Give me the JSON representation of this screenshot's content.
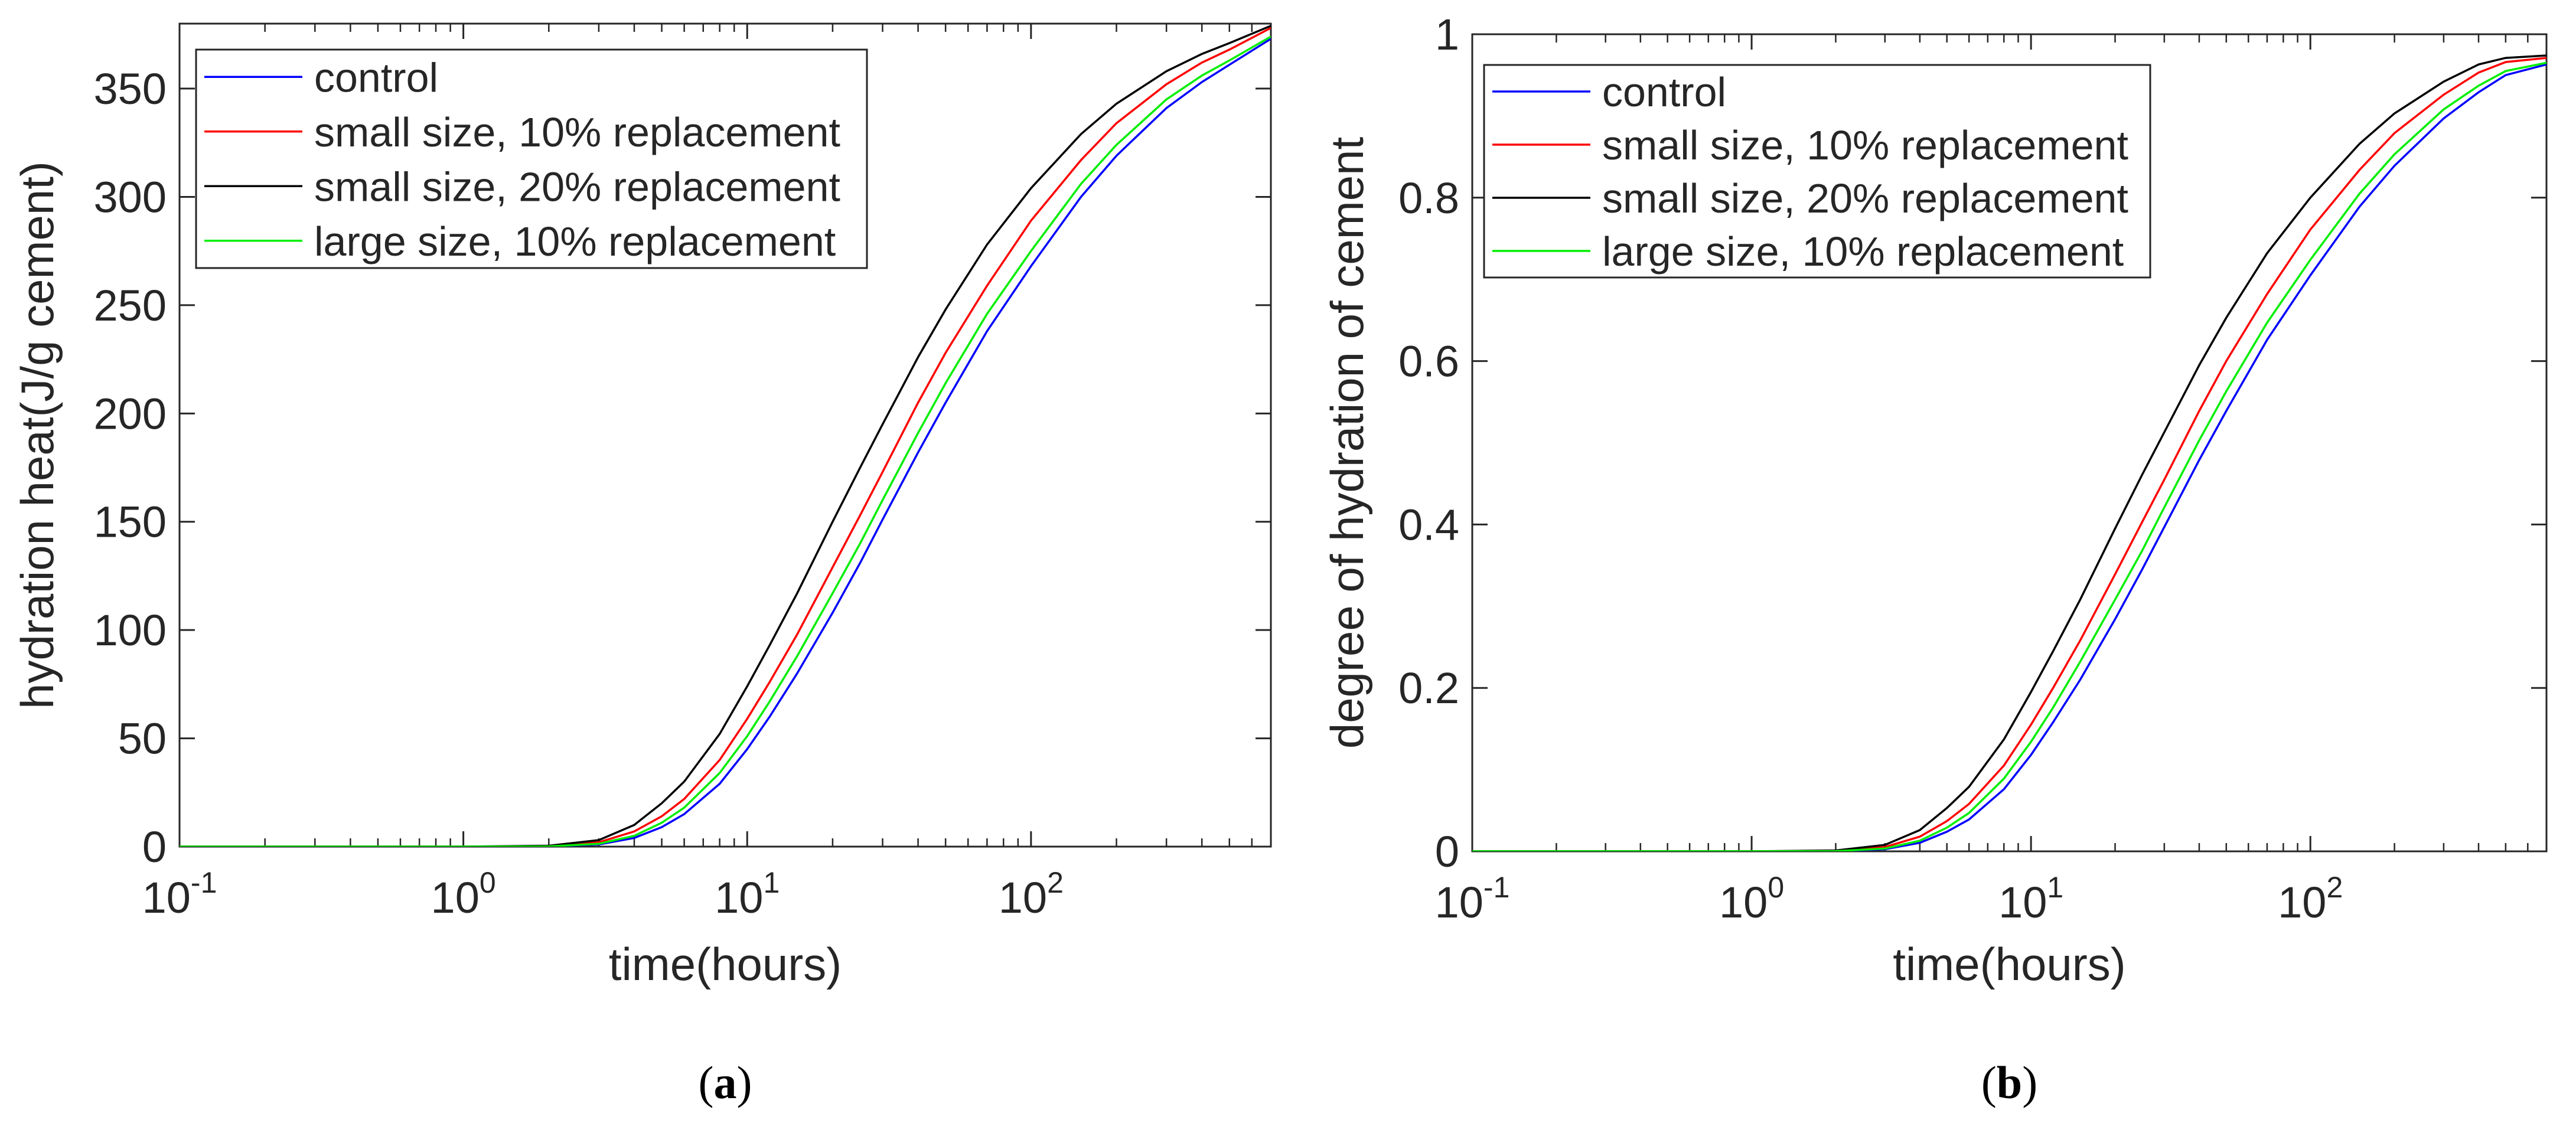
{
  "chart_data": [
    {
      "type": "line",
      "xscale": "log",
      "xlim": [
        0.1,
        700
      ],
      "ylim": [
        0,
        380
      ],
      "xlabel": "time(hours)",
      "ylabel": "hydration heat(J/g cement)",
      "x_ticks": [
        {
          "base": "10",
          "exp": "-1"
        },
        {
          "base": "10",
          "exp": "0"
        },
        {
          "base": "10",
          "exp": "1"
        },
        {
          "base": "10",
          "exp": "2"
        }
      ],
      "y_ticks": [
        0,
        50,
        100,
        150,
        200,
        250,
        300,
        350
      ],
      "panel_label": "a",
      "legend_position": "top-left",
      "series": [
        {
          "name": "control",
          "color": "#0000ff",
          "x": [
            0.1,
            1,
            2,
            3,
            4,
            5,
            6,
            8,
            10,
            12,
            15,
            20,
            25,
            30,
            40,
            50,
            70,
            100,
            150,
            200,
            300,
            400,
            500,
            700
          ],
          "y": [
            0,
            0,
            0.1,
            1,
            4,
            9,
            15,
            29,
            45,
            60,
            80,
            108,
            131,
            151,
            182,
            205,
            238,
            268,
            300,
            319,
            341,
            353,
            361,
            373
          ]
        },
        {
          "name": "small size, 10% replacement",
          "color": "#ff0000",
          "x": [
            0.1,
            1,
            2,
            3,
            4,
            5,
            6,
            8,
            10,
            12,
            15,
            20,
            25,
            30,
            40,
            50,
            70,
            100,
            150,
            200,
            300,
            400,
            500,
            700
          ],
          "y": [
            0,
            0,
            0.2,
            2,
            7,
            14,
            22,
            40,
            59,
            76,
            98,
            129,
            153,
            173,
            205,
            228,
            259,
            289,
            317,
            334,
            352,
            362,
            368,
            378
          ]
        },
        {
          "name": "small size, 20% replacement",
          "color": "#000000",
          "x": [
            0.1,
            1,
            2,
            3,
            4,
            5,
            6,
            8,
            10,
            12,
            15,
            20,
            25,
            30,
            40,
            50,
            70,
            100,
            150,
            200,
            300,
            400,
            500,
            700
          ],
          "y": [
            0,
            0,
            0.4,
            3,
            10,
            20,
            30,
            52,
            74,
            93,
            117,
            150,
            175,
            195,
            226,
            248,
            278,
            304,
            329,
            343,
            358,
            366,
            371,
            379
          ]
        },
        {
          "name": "large size, 10% replacement",
          "color": "#00ee00",
          "x": [
            0.1,
            1,
            2,
            3,
            4,
            5,
            6,
            8,
            10,
            12,
            15,
            20,
            25,
            30,
            40,
            50,
            70,
            100,
            150,
            200,
            300,
            400,
            500,
            700
          ],
          "y": [
            0,
            0,
            0.1,
            1.3,
            5,
            11,
            18,
            34,
            51,
            67,
            88,
            117,
            140,
            160,
            191,
            214,
            246,
            275,
            306,
            324,
            345,
            356,
            363,
            374
          ]
        }
      ]
    },
    {
      "type": "line",
      "xscale": "log",
      "xlim": [
        0.1,
        700
      ],
      "ylim": [
        0,
        1
      ],
      "xlabel": "time(hours)",
      "ylabel": "degree of hydration of cement",
      "x_ticks": [
        {
          "base": "10",
          "exp": "-1"
        },
        {
          "base": "10",
          "exp": "0"
        },
        {
          "base": "10",
          "exp": "1"
        },
        {
          "base": "10",
          "exp": "2"
        }
      ],
      "y_ticks": [
        "0",
        "0.2",
        "0.4",
        "0.6",
        "0.8",
        "1"
      ],
      "panel_label": "b",
      "legend_position": "top-left",
      "series": [
        {
          "name": "control",
          "color": "#0000ff",
          "x": [
            0.1,
            1,
            2,
            3,
            4,
            5,
            6,
            8,
            10,
            12,
            15,
            20,
            25,
            30,
            40,
            50,
            70,
            100,
            150,
            200,
            300,
            400,
            500,
            700
          ],
          "y": [
            0,
            0,
            0.0003,
            0.0026,
            0.0105,
            0.024,
            0.039,
            0.076,
            0.118,
            0.158,
            0.21,
            0.284,
            0.345,
            0.397,
            0.479,
            0.539,
            0.626,
            0.705,
            0.789,
            0.839,
            0.897,
            0.929,
            0.95,
            0.963
          ]
        },
        {
          "name": "small size, 10% replacement",
          "color": "#ff0000",
          "x": [
            0.1,
            1,
            2,
            3,
            4,
            5,
            6,
            8,
            10,
            12,
            15,
            20,
            25,
            30,
            40,
            50,
            70,
            100,
            150,
            200,
            300,
            400,
            500,
            700
          ],
          "y": [
            0,
            0,
            0.0005,
            0.0053,
            0.018,
            0.037,
            0.058,
            0.105,
            0.155,
            0.2,
            0.258,
            0.339,
            0.403,
            0.455,
            0.539,
            0.6,
            0.682,
            0.761,
            0.834,
            0.879,
            0.926,
            0.953,
            0.966,
            0.971
          ]
        },
        {
          "name": "small size, 20% replacement",
          "color": "#000000",
          "x": [
            0.1,
            1,
            2,
            3,
            4,
            5,
            6,
            8,
            10,
            12,
            15,
            20,
            25,
            30,
            40,
            50,
            70,
            100,
            150,
            200,
            300,
            400,
            500,
            700
          ],
          "y": [
            0,
            0,
            0.0011,
            0.0079,
            0.026,
            0.053,
            0.079,
            0.137,
            0.195,
            0.245,
            0.308,
            0.395,
            0.461,
            0.513,
            0.595,
            0.653,
            0.732,
            0.8,
            0.866,
            0.903,
            0.942,
            0.963,
            0.971,
            0.974
          ]
        },
        {
          "name": "large size, 10% replacement",
          "color": "#00ee00",
          "x": [
            0.1,
            1,
            2,
            3,
            4,
            5,
            6,
            8,
            10,
            12,
            15,
            20,
            25,
            30,
            40,
            50,
            70,
            100,
            150,
            200,
            300,
            400,
            500,
            700
          ],
          "y": [
            0,
            0,
            0.0003,
            0.0034,
            0.013,
            0.029,
            0.047,
            0.089,
            0.134,
            0.176,
            0.232,
            0.308,
            0.368,
            0.421,
            0.503,
            0.563,
            0.647,
            0.724,
            0.805,
            0.853,
            0.908,
            0.937,
            0.955,
            0.965
          ]
        }
      ]
    }
  ]
}
